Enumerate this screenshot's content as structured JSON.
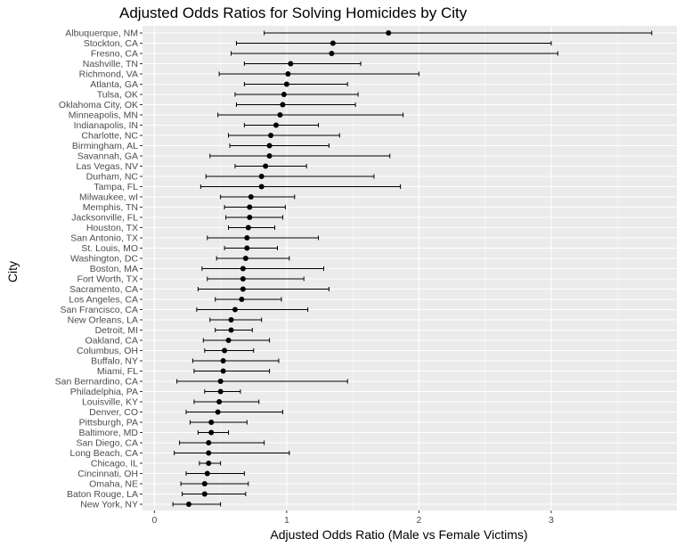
{
  "chart_data": {
    "type": "scatter",
    "title": "Adjusted Odds Ratios for Solving Homicides by City",
    "xlabel": "Adjusted Odds Ratio (Male vs Female Victims)",
    "ylabel": "City",
    "xlim": [
      -0.09,
      3.95
    ],
    "xticks": [
      0,
      1,
      2,
      3
    ],
    "grid": true,
    "background": "#ebebeb",
    "gridColor": "#ffffff",
    "pointColor": "#000000",
    "cities": [
      {
        "city": "Albuquerque, NM",
        "or": 1.77,
        "lo": 0.83,
        "hi": 3.76
      },
      {
        "city": "Stockton, CA",
        "or": 1.35,
        "lo": 0.62,
        "hi": 3.0
      },
      {
        "city": "Fresno, CA",
        "or": 1.34,
        "lo": 0.58,
        "hi": 3.05
      },
      {
        "city": "Nashville, TN",
        "or": 1.03,
        "lo": 0.68,
        "hi": 1.56
      },
      {
        "city": "Richmond, VA",
        "or": 1.01,
        "lo": 0.49,
        "hi": 2.0
      },
      {
        "city": "Atlanta, GA",
        "or": 1.0,
        "lo": 0.68,
        "hi": 1.46
      },
      {
        "city": "Tulsa, OK",
        "or": 0.98,
        "lo": 0.61,
        "hi": 1.54
      },
      {
        "city": "Oklahoma City, OK",
        "or": 0.97,
        "lo": 0.62,
        "hi": 1.52
      },
      {
        "city": "Minneapolis, MN",
        "or": 0.95,
        "lo": 0.48,
        "hi": 1.88
      },
      {
        "city": "Indianapolis, IN",
        "or": 0.92,
        "lo": 0.68,
        "hi": 1.24
      },
      {
        "city": "Charlotte, NC",
        "or": 0.88,
        "lo": 0.56,
        "hi": 1.4
      },
      {
        "city": "Birmingham, AL",
        "or": 0.87,
        "lo": 0.57,
        "hi": 1.32
      },
      {
        "city": "Savannah, GA",
        "or": 0.87,
        "lo": 0.42,
        "hi": 1.78
      },
      {
        "city": "Las Vegas, NV",
        "or": 0.84,
        "lo": 0.61,
        "hi": 1.15
      },
      {
        "city": "Durham, NC",
        "or": 0.81,
        "lo": 0.39,
        "hi": 1.66
      },
      {
        "city": "Tampa, FL",
        "or": 0.81,
        "lo": 0.35,
        "hi": 1.86
      },
      {
        "city": "Milwaukee, wI",
        "or": 0.73,
        "lo": 0.5,
        "hi": 1.06
      },
      {
        "city": "Memphis, TN",
        "or": 0.72,
        "lo": 0.53,
        "hi": 0.99
      },
      {
        "city": "Jacksonville, FL",
        "or": 0.72,
        "lo": 0.54,
        "hi": 0.97
      },
      {
        "city": "Houston, TX",
        "or": 0.71,
        "lo": 0.56,
        "hi": 0.91
      },
      {
        "city": "San Antonio, TX",
        "or": 0.7,
        "lo": 0.4,
        "hi": 1.24
      },
      {
        "city": "St. Louis, MO",
        "or": 0.7,
        "lo": 0.53,
        "hi": 0.93
      },
      {
        "city": "Washington, DC",
        "or": 0.69,
        "lo": 0.47,
        "hi": 1.02
      },
      {
        "city": "Boston, MA",
        "or": 0.67,
        "lo": 0.36,
        "hi": 1.28
      },
      {
        "city": "Fort Worth, TX",
        "or": 0.67,
        "lo": 0.4,
        "hi": 1.13
      },
      {
        "city": "Sacramento, CA",
        "or": 0.67,
        "lo": 0.33,
        "hi": 1.32
      },
      {
        "city": "Los Angeles, CA",
        "or": 0.66,
        "lo": 0.46,
        "hi": 0.96
      },
      {
        "city": "San Francisco, CA",
        "or": 0.61,
        "lo": 0.32,
        "hi": 1.16
      },
      {
        "city": "New Orleans, LA",
        "or": 0.58,
        "lo": 0.42,
        "hi": 0.81
      },
      {
        "city": "Detroit, MI",
        "or": 0.58,
        "lo": 0.46,
        "hi": 0.74
      },
      {
        "city": "Oakland, CA",
        "or": 0.56,
        "lo": 0.37,
        "hi": 0.87
      },
      {
        "city": "Columbus, OH",
        "or": 0.53,
        "lo": 0.38,
        "hi": 0.75
      },
      {
        "city": "Buffalo, NY",
        "or": 0.52,
        "lo": 0.29,
        "hi": 0.94
      },
      {
        "city": "Miami, FL",
        "or": 0.52,
        "lo": 0.3,
        "hi": 0.87
      },
      {
        "city": "San Bernardino, CA",
        "or": 0.5,
        "lo": 0.17,
        "hi": 1.46
      },
      {
        "city": "Philadelphia, PA",
        "or": 0.5,
        "lo": 0.38,
        "hi": 0.65
      },
      {
        "city": "Louisville, KY",
        "or": 0.49,
        "lo": 0.3,
        "hi": 0.79
      },
      {
        "city": "Denver, CO",
        "or": 0.48,
        "lo": 0.24,
        "hi": 0.97
      },
      {
        "city": "Pittsburgh, PA",
        "or": 0.43,
        "lo": 0.27,
        "hi": 0.7
      },
      {
        "city": "Baltimore, MD",
        "or": 0.43,
        "lo": 0.33,
        "hi": 0.56
      },
      {
        "city": "San Diego, CA",
        "or": 0.41,
        "lo": 0.19,
        "hi": 0.83
      },
      {
        "city": "Long Beach, CA",
        "or": 0.41,
        "lo": 0.15,
        "hi": 1.02
      },
      {
        "city": "Chicago, IL",
        "or": 0.41,
        "lo": 0.34,
        "hi": 0.5
      },
      {
        "city": "Cincinnati, OH",
        "or": 0.4,
        "lo": 0.24,
        "hi": 0.68
      },
      {
        "city": "Omaha, NE",
        "or": 0.38,
        "lo": 0.2,
        "hi": 0.71
      },
      {
        "city": "Baton Rouge, LA",
        "or": 0.38,
        "lo": 0.21,
        "hi": 0.69
      },
      {
        "city": "New York, NY",
        "or": 0.26,
        "lo": 0.14,
        "hi": 0.5
      }
    ]
  }
}
